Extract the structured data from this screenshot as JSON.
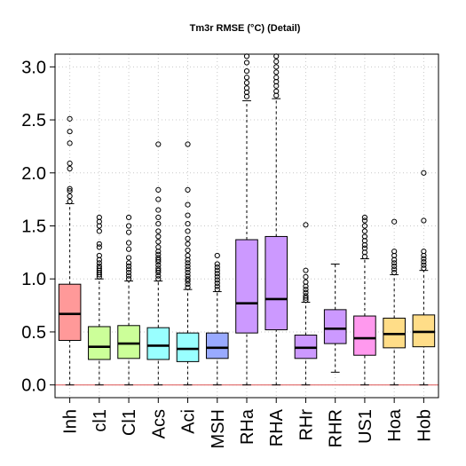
{
  "chart_data": {
    "type": "box",
    "title": "Tm3r RMSE (°C) (Detail)",
    "xlabel": "",
    "ylabel": "",
    "ylim": [
      -0.12,
      3.12
    ],
    "yticks": [
      0.0,
      0.5,
      1.0,
      1.5,
      2.0,
      2.5,
      3.0
    ],
    "ytick_labels": [
      "0.0",
      "0.5",
      "1.0",
      "1.5",
      "2.0",
      "2.5",
      "3.0"
    ],
    "grid": true,
    "reference_line": 0.0,
    "reference_line_color": "#e06666",
    "categories": [
      "Inh",
      "cl1",
      "Cl1",
      "Acs",
      "Aci",
      "MSH",
      "RHa",
      "RHA",
      "RHr",
      "RHR",
      "US1",
      "Hoa",
      "Hob"
    ],
    "boxes": [
      {
        "name": "Inh",
        "color": "#ff9999",
        "min": 0.0,
        "q1": 0.42,
        "median": 0.67,
        "q3": 0.95,
        "max": 1.71,
        "outliers": [
          1.73,
          1.78,
          1.83,
          1.85,
          2.04,
          2.09,
          2.28,
          2.39,
          2.51
        ]
      },
      {
        "name": "cl1",
        "color": "#ccff99",
        "min": 0.0,
        "q1": 0.24,
        "median": 0.36,
        "q3": 0.55,
        "max": 1.0,
        "outliers": [
          1.02,
          1.04,
          1.06,
          1.08,
          1.1,
          1.12,
          1.15,
          1.18,
          1.22,
          1.3,
          1.33,
          1.45,
          1.5,
          1.54,
          1.58
        ]
      },
      {
        "name": "Cl1",
        "color": "#ccff99",
        "min": 0.0,
        "q1": 0.25,
        "median": 0.39,
        "q3": 0.56,
        "max": 0.98,
        "outliers": [
          1.0,
          1.03,
          1.06,
          1.09,
          1.12,
          1.15,
          1.2,
          1.28,
          1.34,
          1.44,
          1.5,
          1.58
        ]
      },
      {
        "name": "Acs",
        "color": "#99ffff",
        "min": 0.0,
        "q1": 0.24,
        "median": 0.37,
        "q3": 0.54,
        "max": 0.98,
        "outliers": [
          1.0,
          1.03,
          1.06,
          1.08,
          1.1,
          1.13,
          1.16,
          1.18,
          1.2,
          1.23,
          1.26,
          1.3,
          1.35,
          1.4,
          1.45,
          1.52,
          1.58,
          1.65,
          1.75,
          1.84,
          2.27
        ]
      },
      {
        "name": "Aci",
        "color": "#99ffff",
        "min": 0.0,
        "q1": 0.22,
        "median": 0.34,
        "q3": 0.49,
        "max": 0.9,
        "outliers": [
          0.92,
          0.95,
          0.98,
          1.0,
          1.03,
          1.06,
          1.09,
          1.12,
          1.15,
          1.18,
          1.22,
          1.27,
          1.33,
          1.38,
          1.45,
          1.52,
          1.6,
          1.7,
          1.84,
          2.27
        ]
      },
      {
        "name": "MSH",
        "color": "#99aaff",
        "min": 0.0,
        "q1": 0.25,
        "median": 0.35,
        "q3": 0.49,
        "max": 0.88,
        "outliers": [
          0.9,
          0.93,
          0.96,
          0.99,
          1.02,
          1.05,
          1.08,
          1.11,
          1.14,
          1.22
        ]
      },
      {
        "name": "RHa",
        "color": "#cc99ff",
        "min": 0.0,
        "q1": 0.49,
        "median": 0.77,
        "q3": 1.37,
        "max": 2.68,
        "outliers": [
          2.72,
          2.76,
          2.8,
          2.85,
          2.9,
          2.96,
          3.04,
          3.1
        ]
      },
      {
        "name": "RHA",
        "color": "#cc99ff",
        "min": 0.0,
        "q1": 0.52,
        "median": 0.81,
        "q3": 1.4,
        "max": 2.7,
        "outliers": [
          2.73,
          2.77,
          2.82,
          2.86,
          2.9,
          2.95,
          3.0,
          3.05,
          3.1
        ]
      },
      {
        "name": "RHr",
        "color": "#cc99ff",
        "min": 0.0,
        "q1": 0.25,
        "median": 0.35,
        "q3": 0.47,
        "max": 0.78,
        "outliers": [
          0.8,
          0.82,
          0.84,
          0.87,
          0.9,
          0.93,
          0.97,
          1.02,
          1.08,
          1.51
        ]
      },
      {
        "name": "RHR",
        "color": "#cc99ff",
        "min": 0.12,
        "q1": 0.39,
        "median": 0.53,
        "q3": 0.71,
        "max": 1.14,
        "outliers": []
      },
      {
        "name": "US1",
        "color": "#ff99ee",
        "min": 0.0,
        "q1": 0.28,
        "median": 0.44,
        "q3": 0.65,
        "max": 1.19,
        "outliers": [
          1.21,
          1.25,
          1.29,
          1.32,
          1.36,
          1.4,
          1.45,
          1.5,
          1.55,
          1.58
        ]
      },
      {
        "name": "Hoa",
        "color": "#ffdd88",
        "min": 0.0,
        "q1": 0.35,
        "median": 0.48,
        "q3": 0.63,
        "max": 1.04,
        "outliers": [
          1.06,
          1.09,
          1.12,
          1.15,
          1.18,
          1.22,
          1.26,
          1.54
        ]
      },
      {
        "name": "Hob",
        "color": "#ffdd88",
        "min": 0.0,
        "q1": 0.36,
        "median": 0.5,
        "q3": 0.66,
        "max": 1.08,
        "outliers": [
          1.1,
          1.13,
          1.16,
          1.19,
          1.22,
          1.26,
          1.55,
          2.0
        ]
      }
    ]
  }
}
